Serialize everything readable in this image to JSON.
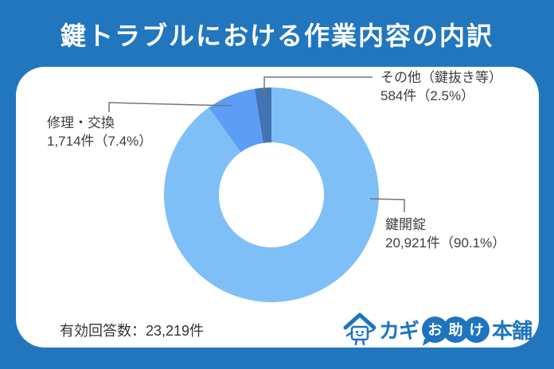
{
  "title": "鍵トラブルにおける作業内容の内訳",
  "chart_data": {
    "type": "pie",
    "variant": "donut",
    "title": "鍵トラブルにおける作業内容の内訳",
    "start_angle": "top",
    "direction": "clockwise",
    "total_responses": 23219,
    "slices": [
      {
        "label": "鍵開錠",
        "count": 20921,
        "percent": 90.1,
        "display": "20,921件（90.1%）",
        "color": "#7FBFF7"
      },
      {
        "label": "修理・交換",
        "count": 1714,
        "percent": 7.4,
        "display": "1,714件（7.4%）",
        "color": "#5C9EF5"
      },
      {
        "label": "その他（鍵抜き等）",
        "count": 584,
        "percent": 2.5,
        "display": "584件（2.5%）",
        "color": "#4273B3"
      }
    ]
  },
  "footer": {
    "total_label": "有効回答数：23,219件"
  },
  "logo": {
    "text_kagi": "カギ",
    "bubble_chars": [
      "お",
      "助",
      "け"
    ],
    "text_honpo": "本舗"
  },
  "colors": {
    "frame_blue": "#2176BE",
    "label_text": "#3E3E3E",
    "leader_line": "#757575",
    "logo_blue": "#1E74BE"
  }
}
